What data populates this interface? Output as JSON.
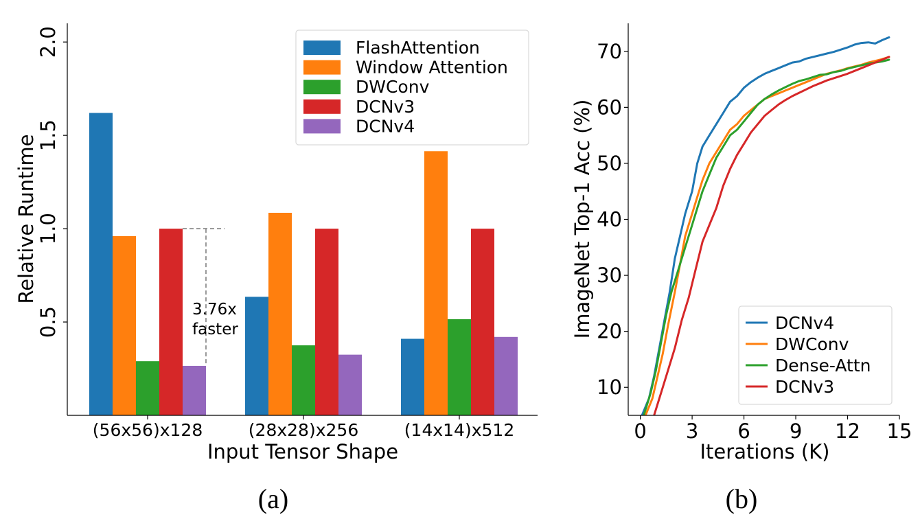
{
  "captions": {
    "a": "(a)",
    "b": "(b)"
  },
  "chart_data": [
    {
      "type": "bar",
      "xlabel": "Input Tensor Shape",
      "ylabel": "Relative Runtime",
      "categories": [
        "(56x56)x128",
        "(28x28)x256",
        "(14x14)x512"
      ],
      "ylim": [
        0,
        2.1
      ],
      "yticks": [
        0.5,
        1.0,
        1.5,
        2.0
      ],
      "yticklabels": [
        "0.5",
        "1.0",
        "1.5",
        "2.0"
      ],
      "legend_position": "upper-right",
      "series": [
        {
          "name": "FlashAttention",
          "color": "#1f77b4",
          "values": [
            1.62,
            0.635,
            0.41
          ]
        },
        {
          "name": "Window Attention",
          "color": "#ff7f0e",
          "values": [
            0.96,
            1.085,
            1.415
          ]
        },
        {
          "name": "DWConv",
          "color": "#2ca02c",
          "values": [
            0.29,
            0.375,
            0.515
          ]
        },
        {
          "name": "DCNv3",
          "color": "#d62728",
          "values": [
            1.0,
            1.0,
            1.0
          ]
        },
        {
          "name": "DCNv4",
          "color": "#9467bd",
          "values": [
            0.265,
            0.325,
            0.42
          ]
        }
      ],
      "annotation": {
        "line1": "3.76x",
        "line2": "faster",
        "color": "#ff0000",
        "from": 1.0,
        "to": 0.265
      }
    },
    {
      "type": "line",
      "xlabel": "Iterations (K)",
      "ylabel": "ImageNet Top-1 Acc (%)",
      "xlim": [
        -0.7,
        15
      ],
      "ylim": [
        5,
        75
      ],
      "xticks": [
        0,
        3,
        6,
        9,
        12,
        15
      ],
      "yticks": [
        10,
        20,
        30,
        40,
        50,
        60,
        70
      ],
      "legend_position": "lower-right",
      "series": [
        {
          "name": "DCNv4",
          "color": "#1f77b4",
          "x": [
            0.1,
            0.5,
            0.8,
            1.1,
            1.4,
            1.7,
            2.0,
            2.3,
            2.6,
            3.0,
            3.3,
            3.6,
            4.0,
            4.4,
            4.8,
            5.2,
            5.6,
            6.0,
            6.4,
            6.8,
            7.2,
            7.6,
            8.0,
            8.4,
            8.8,
            9.2,
            9.6,
            10.0,
            10.4,
            10.8,
            11.2,
            11.6,
            12.0,
            12.4,
            12.8,
            13.2,
            13.6,
            14.0,
            14.4
          ],
          "y": [
            5,
            8,
            12,
            17,
            22,
            27,
            33,
            37,
            41,
            45,
            50,
            53,
            55,
            57,
            59,
            61,
            62,
            63.5,
            64.5,
            65.3,
            66,
            66.5,
            67,
            67.5,
            68,
            68.2,
            68.7,
            69,
            69.3,
            69.6,
            69.9,
            70.3,
            70.7,
            71.2,
            71.5,
            71.6,
            71.4,
            72,
            72.5
          ]
        },
        {
          "name": "DWConv",
          "color": "#ff7f0e",
          "x": [
            0.3,
            0.7,
            1.0,
            1.3,
            1.6,
            2.0,
            2.3,
            2.6,
            3.0,
            3.3,
            3.6,
            4.0,
            4.4,
            4.8,
            5.2,
            5.6,
            6.0,
            6.4,
            6.8,
            7.2,
            7.6,
            8.0,
            8.4,
            8.8,
            9.2,
            9.6,
            10.0,
            10.4,
            10.8,
            11.2,
            11.6,
            12.0,
            12.4,
            12.8,
            13.2,
            13.6,
            14.0,
            14.4
          ],
          "y": [
            5,
            8,
            12,
            16,
            21,
            27,
            32,
            37,
            41,
            44,
            47,
            50,
            52,
            54,
            56,
            57,
            58.5,
            59.5,
            60.5,
            61.5,
            62,
            62.5,
            63,
            63.5,
            64,
            64.5,
            65,
            65.5,
            66,
            66.3,
            66.6,
            67,
            67.3,
            67.6,
            68,
            68.3,
            68.6,
            69
          ]
        },
        {
          "name": "Dense-Attn",
          "color": "#2ca02c",
          "x": [
            0.2,
            0.6,
            0.9,
            1.2,
            1.5,
            1.8,
            2.2,
            2.6,
            3.0,
            3.3,
            3.6,
            4.0,
            4.4,
            4.8,
            5.2,
            5.6,
            6.0,
            6.4,
            6.8,
            7.2,
            7.6,
            8.0,
            8.4,
            8.8,
            9.2,
            9.6,
            10.0,
            10.4,
            10.8,
            11.2,
            11.6,
            12.0,
            12.4,
            12.8,
            13.2,
            13.6,
            14.0,
            14.4
          ],
          "y": [
            5,
            9,
            13,
            18,
            23,
            27,
            31,
            35,
            39,
            42,
            45,
            48,
            51,
            53,
            55,
            56,
            57.5,
            59,
            60.5,
            61.5,
            62.3,
            63,
            63.6,
            64.2,
            64.7,
            65,
            65.4,
            65.8,
            65.9,
            66.3,
            66.5,
            66.9,
            67.2,
            67.5,
            67.8,
            68,
            68.2,
            68.5
          ]
        },
        {
          "name": "DCNv3",
          "color": "#d62728",
          "x": [
            0.8,
            1.2,
            1.6,
            2.0,
            2.4,
            2.8,
            3.2,
            3.6,
            4.0,
            4.4,
            4.8,
            5.2,
            5.6,
            6.0,
            6.4,
            6.8,
            7.2,
            7.6,
            8.0,
            8.4,
            8.8,
            9.2,
            9.6,
            10.0,
            10.4,
            10.8,
            11.2,
            11.6,
            12.0,
            12.4,
            12.8,
            13.2,
            13.6,
            14.0,
            14.4
          ],
          "y": [
            5,
            9,
            13,
            17,
            22,
            26,
            31,
            36,
            39,
            42,
            46,
            49,
            51.5,
            53.5,
            55.5,
            57,
            58.5,
            59.5,
            60.5,
            61.3,
            62,
            62.6,
            63.2,
            63.8,
            64.3,
            64.8,
            65.2,
            65.6,
            66,
            66.5,
            67,
            67.5,
            68,
            68.5,
            69
          ]
        }
      ]
    }
  ]
}
